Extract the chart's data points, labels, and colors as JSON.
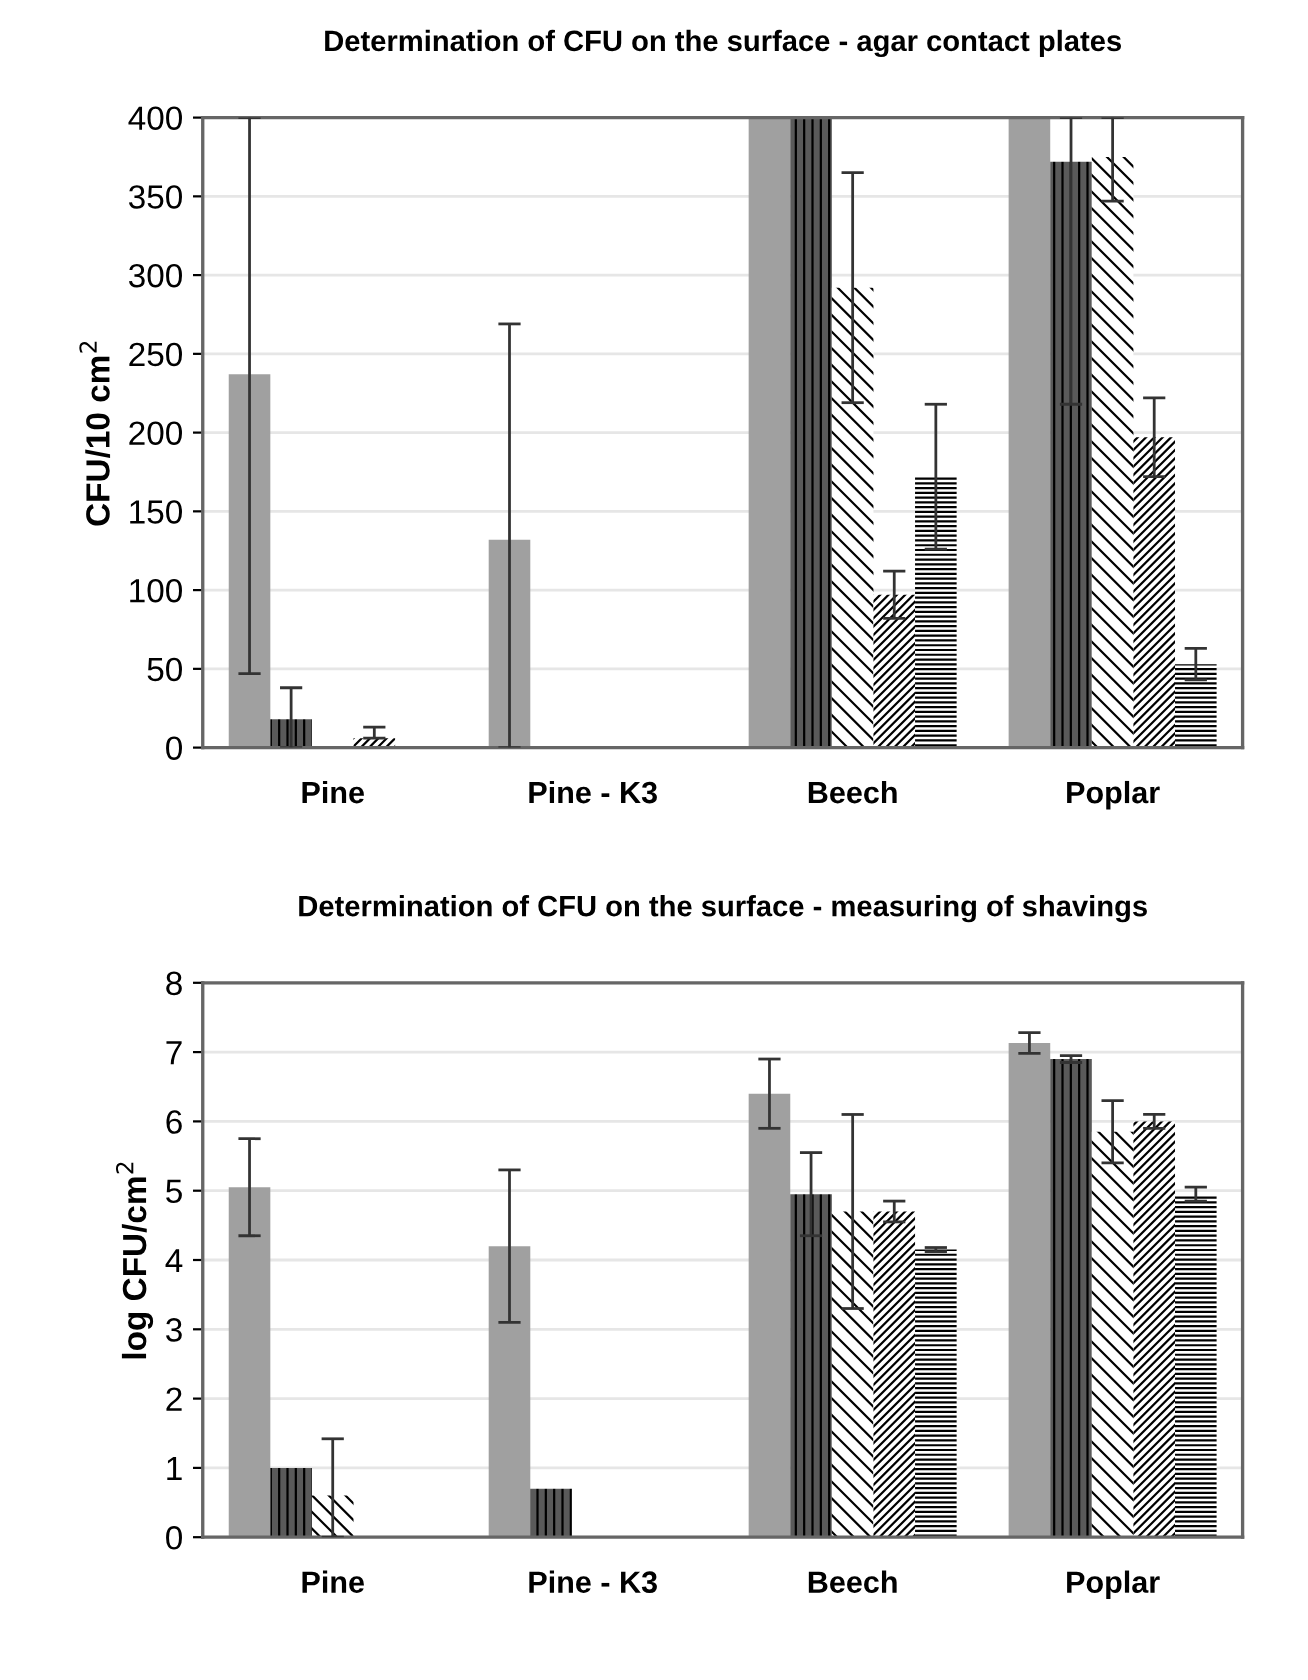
{
  "chart_data": [
    {
      "type": "bar",
      "title": "Determination of CFU on the surface - agar contact plates",
      "ylabel": "CFU/10 cm$^{2}$",
      "categories": [
        "Pine",
        "Pine - K3",
        "Beech",
        "Poplar"
      ],
      "ylim": [
        0,
        400
      ],
      "yticks": [
        0,
        50,
        100,
        150,
        200,
        250,
        300,
        350,
        400
      ],
      "grid": "y",
      "legend": false,
      "series": [
        {
          "color": "#a0a0a0",
          "values": [
            237,
            132,
            400,
            400
          ],
          "errors": [
            [
              47,
              400
            ],
            [
              0,
              269
            ],
            null,
            null
          ]
        },
        {
          "color": "#5a5a5a",
          "values": [
            18,
            1,
            400,
            372
          ],
          "errors": [
            [
              0,
              38
            ],
            null,
            null,
            [
              218,
              400
            ]
          ]
        },
        {
          "color": "#ffffff",
          "values": [
            1,
            1,
            292,
            375
          ],
          "errors": [
            null,
            null,
            73,
            [
              347,
              400
            ]
          ]
        },
        {
          "color": "#ffffff",
          "values": [
            6,
            0,
            97,
            197
          ],
          "errors": [
            [
              6,
              13
            ],
            null,
            15,
            25
          ]
        },
        {
          "color": "#ffffff",
          "values": [
            1,
            0,
            172,
            53
          ],
          "errors": [
            null,
            null,
            46,
            10
          ]
        }
      ]
    },
    {
      "type": "bar",
      "title": "Determination of CFU on the surface - measuring of shavings",
      "ylabel": "log CFU/cm$^{2}$",
      "categories": [
        "Pine",
        "Pine - K3",
        "Beech",
        "Poplar"
      ],
      "ylim": [
        0,
        8
      ],
      "yticks": [
        0,
        1,
        2,
        3,
        4,
        5,
        6,
        7,
        8
      ],
      "grid": "y",
      "legend": false,
      "series": [
        {
          "color": "#a0a0a0",
          "values": [
            5.05,
            4.2,
            6.4,
            7.13
          ],
          "errors": [
            0.7,
            1.1,
            0.5,
            0.15
          ]
        },
        {
          "color": "#5a5a5a",
          "values": [
            1.0,
            0.7,
            4.95,
            6.9
          ],
          "errors": [
            null,
            null,
            0.6,
            0.05
          ]
        },
        {
          "color": "#ffffff",
          "values": [
            0.6,
            null,
            4.7,
            5.85
          ],
          "errors": [
            [
              0,
              1.42
            ],
            null,
            1.4,
            0.45
          ]
        },
        {
          "color": "#ffffff",
          "values": [
            null,
            null,
            4.7,
            6.0
          ],
          "errors": [
            null,
            null,
            0.15,
            0.1
          ]
        },
        {
          "color": "#ffffff",
          "values": [
            null,
            null,
            4.15,
            4.95
          ],
          "errors": [
            null,
            null,
            0.03,
            0.1
          ]
        }
      ]
    }
  ]
}
